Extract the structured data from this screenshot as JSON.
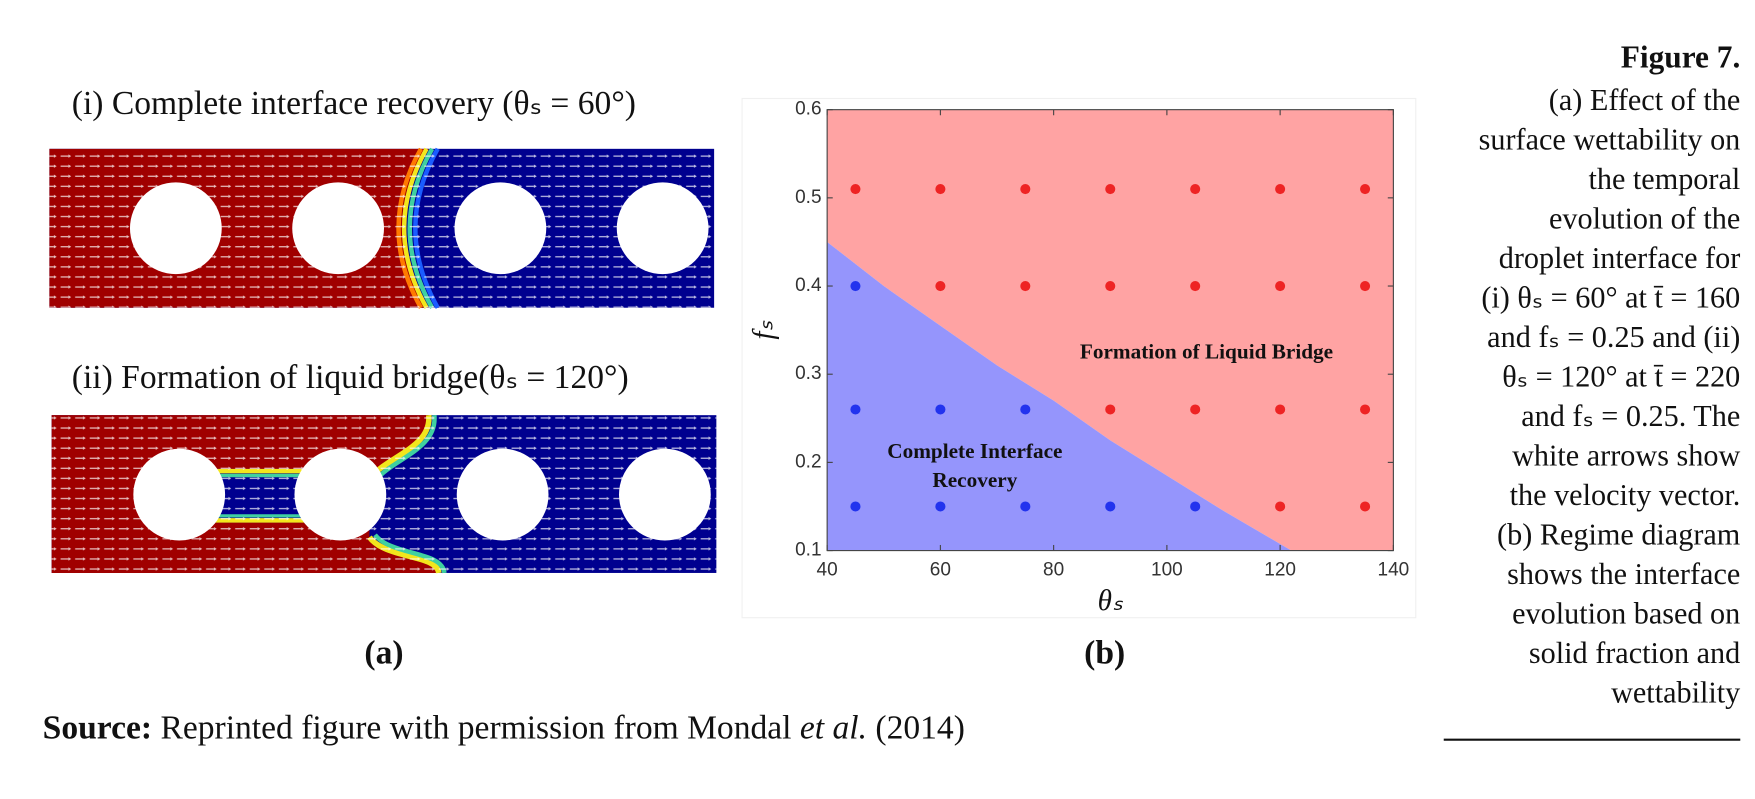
{
  "panel_a": {
    "label": "(a)",
    "subfigures": [
      {
        "caption": "(i) Complete interface recovery (θₛ = 60°)"
      },
      {
        "caption": "(ii) Formation of liquid bridge(θₛ = 120°)"
      }
    ]
  },
  "chart_data": {
    "type": "scatter",
    "label": "(b)",
    "xlabel": "θₛ",
    "ylabel": "fₛ",
    "xlim": [
      40,
      140
    ],
    "ylim": [
      0.1,
      0.6
    ],
    "xticks": [
      40,
      60,
      80,
      100,
      120,
      140
    ],
    "yticks": [
      0.1,
      0.2,
      0.3,
      0.4,
      0.5,
      0.6
    ],
    "grid": false,
    "series": [
      {
        "color": "#ee2424",
        "x": [
          45,
          60,
          75,
          90,
          105,
          120,
          135,
          60,
          75,
          90,
          105,
          120,
          135,
          90,
          105,
          120,
          135,
          120,
          135
        ],
        "values": [
          0.51,
          0.51,
          0.51,
          0.51,
          0.51,
          0.51,
          0.51,
          0.4,
          0.4,
          0.4,
          0.4,
          0.4,
          0.4,
          0.26,
          0.26,
          0.26,
          0.26,
          0.15,
          0.15
        ]
      },
      {
        "color": "#2233ee",
        "x": [
          45,
          45,
          60,
          75,
          45,
          60,
          75,
          90,
          105
        ],
        "values": [
          0.4,
          0.26,
          0.26,
          0.26,
          0.15,
          0.15,
          0.15,
          0.15,
          0.15
        ]
      }
    ],
    "boundary": {
      "x": [
        40,
        50,
        60,
        70,
        80,
        90,
        100,
        110,
        122
      ],
      "values": [
        0.45,
        0.4,
        0.355,
        0.31,
        0.27,
        0.225,
        0.185,
        0.145,
        0.1
      ]
    },
    "regions": [
      {
        "color": "#ffa3a3",
        "label_lines": [
          "Formation of Liquid Bridge"
        ]
      },
      {
        "color": "#9595fc",
        "label_lines": [
          "Complete Interface",
          "Recovery"
        ]
      }
    ]
  },
  "caption": {
    "title": "Figure 7.",
    "lines": [
      "(a) Effect of the",
      "surface wettability on",
      "the temporal",
      "evolution of the",
      "droplet interface for",
      "(i) θₛ = 60° at t̄ = 160",
      "and fₛ = 0.25 and (ii)",
      "θₛ = 120° at t̄ = 220",
      "and fₛ = 0.25. The",
      "white arrows show",
      "the velocity vector.",
      "(b) Regime diagram",
      "shows the interface",
      "evolution based on",
      "solid fraction and",
      "wettability"
    ]
  },
  "source": {
    "label": "Source:",
    "text_before": " Reprinted figure with permission from Mondal ",
    "italic": "et al.",
    "text_after": " (2014)"
  }
}
